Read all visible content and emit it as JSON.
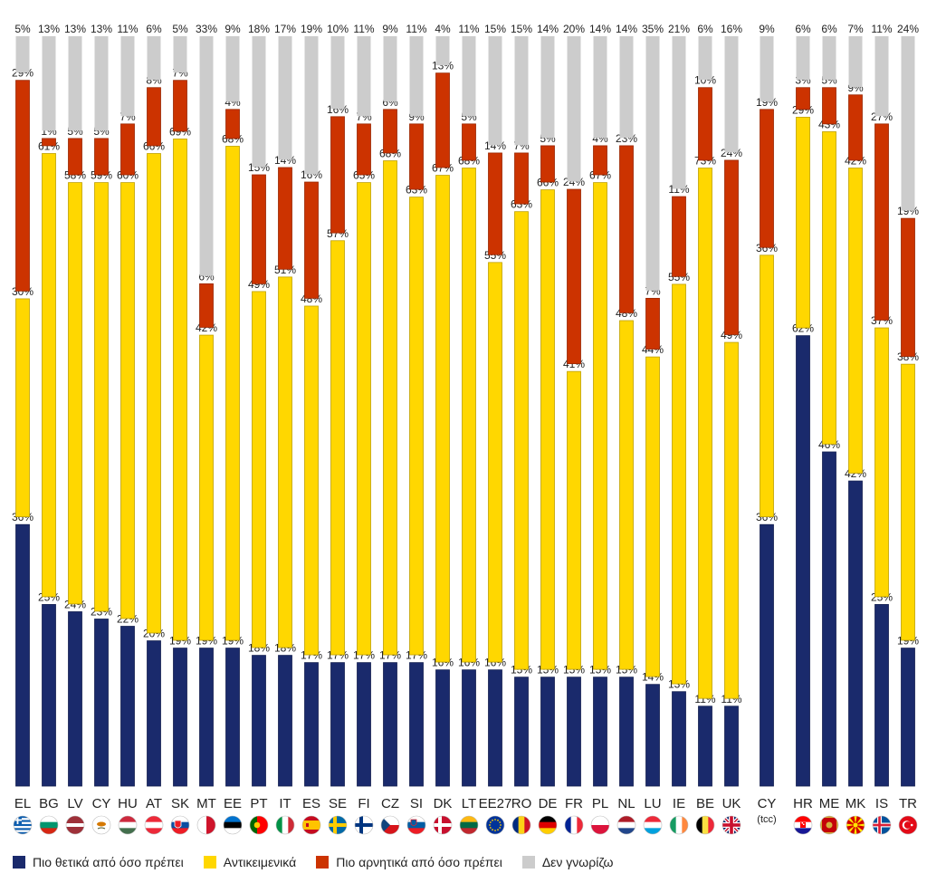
{
  "chart_data": {
    "type": "bar",
    "stacked": true,
    "ylim": [
      0,
      100
    ],
    "value_suffix": "%",
    "legend_position": "bottom",
    "series": [
      {
        "name": "Πιο θετικά από όσο πρέπει",
        "color": "#1a2a6c"
      },
      {
        "name": "Αντικειμενικά",
        "color": "#ffd700"
      },
      {
        "name": "Πιο αρνητικά από όσο πρέπει",
        "color": "#cc3300"
      },
      {
        "name": "Δεν γνωρίζω",
        "color": "#cccccc"
      }
    ],
    "groups": [
      {
        "bars": [
          {
            "label": "EL",
            "flag": "flag-greece",
            "values": [
              36,
              30,
              29,
              5
            ]
          },
          {
            "label": "BG",
            "flag": "flag-bulgaria",
            "values": [
              25,
              61,
              1,
              13
            ]
          },
          {
            "label": "LV",
            "flag": "flag-latvia",
            "values": [
              24,
              58,
              5,
              13
            ]
          },
          {
            "label": "CY",
            "flag": "flag-cyprus",
            "values": [
              23,
              59,
              5,
              13
            ]
          },
          {
            "label": "HU",
            "flag": "flag-hungary",
            "values": [
              22,
              60,
              7,
              11
            ]
          },
          {
            "label": "AT",
            "flag": "flag-austria",
            "values": [
              20,
              66,
              8,
              6
            ]
          },
          {
            "label": "SK",
            "flag": "flag-slovakia",
            "values": [
              19,
              69,
              7,
              5
            ]
          },
          {
            "label": "MT",
            "flag": "flag-malta",
            "values": [
              19,
              42,
              6,
              33
            ]
          },
          {
            "label": "EE",
            "flag": "flag-estonia",
            "values": [
              19,
              68,
              4,
              9
            ]
          },
          {
            "label": "PT",
            "flag": "flag-portugal",
            "values": [
              18,
              49,
              15,
              18
            ]
          },
          {
            "label": "IT",
            "flag": "flag-italy",
            "values": [
              18,
              51,
              14,
              17
            ]
          },
          {
            "label": "ES",
            "flag": "flag-spain",
            "values": [
              17,
              48,
              16,
              19
            ]
          },
          {
            "label": "SE",
            "flag": "flag-sweden",
            "values": [
              17,
              57,
              16,
              10
            ]
          },
          {
            "label": "FI",
            "flag": "flag-finland",
            "values": [
              17,
              65,
              7,
              11
            ]
          },
          {
            "label": "CZ",
            "flag": "flag-czech",
            "values": [
              17,
              68,
              6,
              9
            ]
          },
          {
            "label": "SI",
            "flag": "flag-slovenia",
            "values": [
              17,
              63,
              9,
              11
            ]
          },
          {
            "label": "DK",
            "flag": "flag-denmark",
            "values": [
              16,
              67,
              13,
              4
            ]
          },
          {
            "label": "LT",
            "flag": "flag-lithuania",
            "values": [
              16,
              68,
              5,
              11
            ]
          },
          {
            "label": "EE27",
            "flag": "flag-eu",
            "values": [
              16,
              55,
              14,
              15
            ]
          },
          {
            "label": "RO",
            "flag": "flag-romania",
            "values": [
              15,
              63,
              7,
              15
            ]
          },
          {
            "label": "DE",
            "flag": "flag-germany",
            "values": [
              15,
              66,
              5,
              14
            ]
          },
          {
            "label": "FR",
            "flag": "flag-france",
            "values": [
              15,
              41,
              24,
              20
            ]
          },
          {
            "label": "PL",
            "flag": "flag-poland",
            "values": [
              15,
              67,
              4,
              14
            ]
          },
          {
            "label": "NL",
            "flag": "flag-netherlands",
            "values": [
              15,
              48,
              23,
              14
            ]
          },
          {
            "label": "LU",
            "flag": "flag-luxembourg",
            "values": [
              14,
              44,
              7,
              35
            ]
          },
          {
            "label": "IE",
            "flag": "flag-ireland",
            "values": [
              13,
              55,
              11,
              21
            ]
          },
          {
            "label": "BE",
            "flag": "flag-belgium",
            "values": [
              11,
              73,
              10,
              6
            ]
          },
          {
            "label": "UK",
            "flag": "flag-uk",
            "values": [
              11,
              49,
              24,
              16
            ]
          }
        ]
      },
      {
        "bars": [
          {
            "label": "CY",
            "sublabel": "(tcc)",
            "flag": "",
            "values": [
              36,
              36,
              19,
              9
            ]
          }
        ]
      },
      {
        "bars": [
          {
            "label": "HR",
            "flag": "flag-croatia",
            "values": [
              62,
              29,
              3,
              6
            ]
          },
          {
            "label": "ME",
            "flag": "flag-montenegro",
            "values": [
              46,
              43,
              5,
              6
            ]
          },
          {
            "label": "MK",
            "flag": "flag-macedonia",
            "values": [
              42,
              42,
              9,
              7
            ]
          },
          {
            "label": "IS",
            "flag": "flag-iceland",
            "values": [
              25,
              37,
              27,
              11
            ]
          },
          {
            "label": "TR",
            "flag": "flag-turkey",
            "values": [
              19,
              38,
              19,
              24
            ]
          }
        ]
      }
    ]
  }
}
